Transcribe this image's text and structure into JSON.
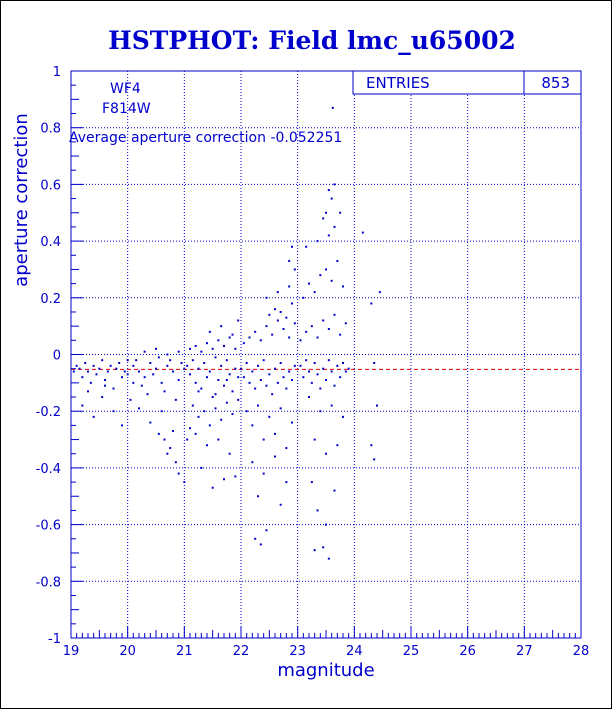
{
  "chart_data": {
    "type": "scatter",
    "title": "HSTPHOT: Field lmc_u65002",
    "xlabel": "magnitude",
    "ylabel": "aperture correction",
    "xlim": [
      19,
      28
    ],
    "ylim": [
      -1,
      1
    ],
    "xticks": [
      "19",
      "20",
      "21",
      "22",
      "23",
      "24",
      "25",
      "26",
      "27",
      "28"
    ],
    "yticks": [
      "-1",
      "-0.8",
      "-0.6",
      "-0.4",
      "-0.2",
      "0",
      "0.2",
      "0.4",
      "0.6",
      "0.8",
      "1"
    ],
    "grid": true,
    "annotations": {
      "camera": "WF4",
      "filter": "F814W",
      "average_text": "Average aperture correction -0.052251"
    },
    "stats": {
      "entries_label": "ENTRIES",
      "entries_value": "853"
    },
    "reference_line": {
      "y": -0.052251,
      "style": "dashed",
      "color": "#dd0000"
    },
    "colors": {
      "points": "#0000cc",
      "axes": "#0000cc",
      "grid": "#0000cc",
      "reference": "#dd0000"
    },
    "points": [
      [
        19.05,
        -0.06
      ],
      [
        19.1,
        -0.04
      ],
      [
        19.15,
        -0.05
      ],
      [
        19.2,
        -0.08
      ],
      [
        19.25,
        -0.03
      ],
      [
        19.3,
        -0.06
      ],
      [
        19.35,
        -0.1
      ],
      [
        19.4,
        -0.04
      ],
      [
        19.45,
        -0.07
      ],
      [
        19.5,
        -0.05
      ],
      [
        19.55,
        -0.02
      ],
      [
        19.6,
        -0.09
      ],
      [
        19.65,
        -0.06
      ],
      [
        19.7,
        -0.04
      ],
      [
        19.75,
        -0.12
      ],
      [
        19.8,
        -0.05
      ],
      [
        19.85,
        -0.03
      ],
      [
        19.9,
        -0.08
      ],
      [
        19.95,
        -0.06
      ],
      [
        20.0,
        -0.07
      ],
      [
        19.2,
        -0.18
      ],
      [
        19.4,
        -0.22
      ],
      [
        19.55,
        -0.15
      ],
      [
        19.75,
        -0.2
      ],
      [
        19.9,
        -0.25
      ],
      [
        20.05,
        -0.16
      ],
      [
        19.3,
        -0.13
      ],
      [
        19.6,
        -0.11
      ],
      [
        20.1,
        -0.04
      ],
      [
        20.2,
        -0.06
      ],
      [
        20.3,
        -0.08
      ],
      [
        20.4,
        -0.03
      ],
      [
        20.5,
        -0.05
      ],
      [
        20.6,
        -0.1
      ],
      [
        20.7,
        -0.04
      ],
      [
        20.8,
        -0.06
      ],
      [
        20.9,
        -0.09
      ],
      [
        21.0,
        -0.05
      ],
      [
        20.15,
        -0.02
      ],
      [
        20.25,
        -0.11
      ],
      [
        20.35,
        -0.14
      ],
      [
        20.45,
        -0.07
      ],
      [
        20.55,
        -0.01
      ],
      [
        20.65,
        -0.13
      ],
      [
        20.75,
        -0.02
      ],
      [
        20.85,
        -0.16
      ],
      [
        20.95,
        -0.03
      ],
      [
        20.2,
        -0.19
      ],
      [
        20.4,
        -0.24
      ],
      [
        20.6,
        -0.2
      ],
      [
        20.8,
        -0.27
      ],
      [
        20.3,
        0.01
      ],
      [
        20.5,
        0.02
      ],
      [
        20.7,
        0.0
      ],
      [
        20.9,
        0.01
      ],
      [
        20.65,
        -0.3
      ],
      [
        20.7,
        -0.35
      ],
      [
        20.85,
        -0.38
      ],
      [
        20.9,
        -0.42
      ],
      [
        21.0,
        -0.45
      ],
      [
        20.75,
        -0.33
      ],
      [
        20.55,
        -0.28
      ],
      [
        20.0,
        -0.02
      ],
      [
        20.1,
        -0.1
      ],
      [
        21.05,
        -0.04
      ],
      [
        21.1,
        -0.07
      ],
      [
        21.15,
        -0.02
      ],
      [
        21.2,
        -0.1
      ],
      [
        21.25,
        -0.05
      ],
      [
        21.3,
        -0.12
      ],
      [
        21.35,
        -0.03
      ],
      [
        21.4,
        -0.08
      ],
      [
        21.45,
        -0.06
      ],
      [
        21.5,
        -0.15
      ],
      [
        21.55,
        -0.01
      ],
      [
        21.6,
        -0.09
      ],
      [
        21.65,
        -0.04
      ],
      [
        21.7,
        -0.11
      ],
      [
        21.75,
        -0.02
      ],
      [
        21.8,
        -0.07
      ],
      [
        21.85,
        -0.13
      ],
      [
        21.9,
        -0.05
      ],
      [
        21.95,
        -0.08
      ],
      [
        21.1,
        0.02
      ],
      [
        21.2,
        0.03
      ],
      [
        21.3,
        0.01
      ],
      [
        21.4,
        0.04
      ],
      [
        21.5,
        0.02
      ],
      [
        21.6,
        0.05
      ],
      [
        21.7,
        0.03
      ],
      [
        21.8,
        0.06
      ],
      [
        21.9,
        0.02
      ],
      [
        21.15,
        -0.18
      ],
      [
        21.25,
        -0.22
      ],
      [
        21.35,
        -0.2
      ],
      [
        21.45,
        -0.25
      ],
      [
        21.55,
        -0.19
      ],
      [
        21.65,
        -0.23
      ],
      [
        21.75,
        -0.17
      ],
      [
        21.85,
        -0.21
      ],
      [
        21.95,
        -0.16
      ],
      [
        21.2,
        -0.28
      ],
      [
        21.4,
        -0.32
      ],
      [
        21.6,
        -0.3
      ],
      [
        21.8,
        -0.35
      ],
      [
        21.3,
        -0.4
      ],
      [
        21.7,
        -0.44
      ],
      [
        21.5,
        -0.47
      ],
      [
        21.9,
        -0.43
      ],
      [
        21.45,
        0.08
      ],
      [
        21.65,
        0.1
      ],
      [
        21.85,
        0.07
      ],
      [
        21.95,
        0.12
      ],
      [
        21.55,
        -0.14
      ],
      [
        21.75,
        -0.09
      ],
      [
        21.25,
        -0.13
      ],
      [
        21.05,
        -0.3
      ],
      [
        21.1,
        -0.26
      ],
      [
        22.0,
        -0.05
      ],
      [
        22.05,
        -0.08
      ],
      [
        22.1,
        -0.03
      ],
      [
        22.15,
        -0.1
      ],
      [
        22.2,
        -0.06
      ],
      [
        22.25,
        -0.12
      ],
      [
        22.3,
        -0.04
      ],
      [
        22.35,
        -0.09
      ],
      [
        22.4,
        -0.02
      ],
      [
        22.45,
        -0.11
      ],
      [
        22.5,
        -0.07
      ],
      [
        22.55,
        -0.14
      ],
      [
        22.6,
        -0.05
      ],
      [
        22.65,
        -0.1
      ],
      [
        22.7,
        -0.03
      ],
      [
        22.75,
        -0.08
      ],
      [
        22.8,
        -0.12
      ],
      [
        22.85,
        -0.06
      ],
      [
        22.9,
        -0.09
      ],
      [
        22.95,
        -0.04
      ],
      [
        22.05,
        0.04
      ],
      [
        22.15,
        0.06
      ],
      [
        22.25,
        0.08
      ],
      [
        22.35,
        0.05
      ],
      [
        22.45,
        0.1
      ],
      [
        22.55,
        0.07
      ],
      [
        22.65,
        0.12
      ],
      [
        22.75,
        0.09
      ],
      [
        22.85,
        0.06
      ],
      [
        22.95,
        0.11
      ],
      [
        22.1,
        -0.2
      ],
      [
        22.2,
        -0.25
      ],
      [
        22.3,
        -0.18
      ],
      [
        22.4,
        -0.3
      ],
      [
        22.5,
        -0.22
      ],
      [
        22.6,
        -0.28
      ],
      [
        22.7,
        -0.19
      ],
      [
        22.8,
        -0.33
      ],
      [
        22.9,
        -0.24
      ],
      [
        22.2,
        -0.38
      ],
      [
        22.4,
        -0.42
      ],
      [
        22.6,
        -0.36
      ],
      [
        22.8,
        -0.45
      ],
      [
        22.3,
        -0.5
      ],
      [
        22.7,
        -0.53
      ],
      [
        22.25,
        -0.65
      ],
      [
        22.35,
        -0.67
      ],
      [
        22.45,
        -0.62
      ],
      [
        22.5,
        0.14
      ],
      [
        22.6,
        0.16
      ],
      [
        22.7,
        0.15
      ],
      [
        22.8,
        0.13
      ],
      [
        22.9,
        0.18
      ],
      [
        22.45,
        0.2
      ],
      [
        22.65,
        0.22
      ],
      [
        22.85,
        0.24
      ],
      [
        22.95,
        0.3
      ],
      [
        22.9,
        0.38
      ],
      [
        22.85,
        0.33
      ],
      [
        23.05,
        -0.04
      ],
      [
        23.1,
        -0.08
      ],
      [
        23.15,
        -0.02
      ],
      [
        23.2,
        -0.06
      ],
      [
        23.25,
        -0.1
      ],
      [
        23.3,
        -0.03
      ],
      [
        23.35,
        -0.07
      ],
      [
        23.4,
        -0.12
      ],
      [
        23.45,
        -0.05
      ],
      [
        23.5,
        -0.09
      ],
      [
        23.55,
        -0.02
      ],
      [
        23.6,
        -0.06
      ],
      [
        23.65,
        -0.11
      ],
      [
        23.7,
        -0.04
      ],
      [
        23.75,
        -0.08
      ],
      [
        23.8,
        -0.03
      ],
      [
        23.85,
        -0.06
      ],
      [
        23.9,
        -0.05
      ],
      [
        23.05,
        0.05
      ],
      [
        23.15,
        0.08
      ],
      [
        23.25,
        0.1
      ],
      [
        23.35,
        0.06
      ],
      [
        23.45,
        0.12
      ],
      [
        23.55,
        0.09
      ],
      [
        23.65,
        0.14
      ],
      [
        23.75,
        0.07
      ],
      [
        23.85,
        0.11
      ],
      [
        23.1,
        0.2
      ],
      [
        23.2,
        0.25
      ],
      [
        23.3,
        0.22
      ],
      [
        23.4,
        0.28
      ],
      [
        23.5,
        0.3
      ],
      [
        23.6,
        0.26
      ],
      [
        23.7,
        0.33
      ],
      [
        23.8,
        0.24
      ],
      [
        23.15,
        0.38
      ],
      [
        23.35,
        0.4
      ],
      [
        23.55,
        0.42
      ],
      [
        23.65,
        0.45
      ],
      [
        23.45,
        0.48
      ],
      [
        23.5,
        0.5
      ],
      [
        23.75,
        0.5
      ],
      [
        23.6,
        0.55
      ],
      [
        23.55,
        0.58
      ],
      [
        23.65,
        0.6
      ],
      [
        23.62,
        0.87
      ],
      [
        23.2,
        -0.15
      ],
      [
        23.4,
        -0.2
      ],
      [
        23.6,
        -0.18
      ],
      [
        23.8,
        -0.22
      ],
      [
        23.3,
        -0.3
      ],
      [
        23.5,
        -0.35
      ],
      [
        23.7,
        -0.32
      ],
      [
        23.25,
        -0.45
      ],
      [
        23.65,
        -0.48
      ],
      [
        23.3,
        -0.69
      ],
      [
        23.45,
        -0.68
      ],
      [
        23.55,
        -0.72
      ],
      [
        23.5,
        -0.6
      ],
      [
        23.35,
        -0.55
      ],
      [
        24.15,
        0.43
      ],
      [
        24.3,
        0.18
      ],
      [
        24.35,
        -0.03
      ],
      [
        24.4,
        -0.18
      ],
      [
        24.3,
        -0.32
      ],
      [
        24.35,
        -0.37
      ],
      [
        24.45,
        0.22
      ]
    ]
  }
}
